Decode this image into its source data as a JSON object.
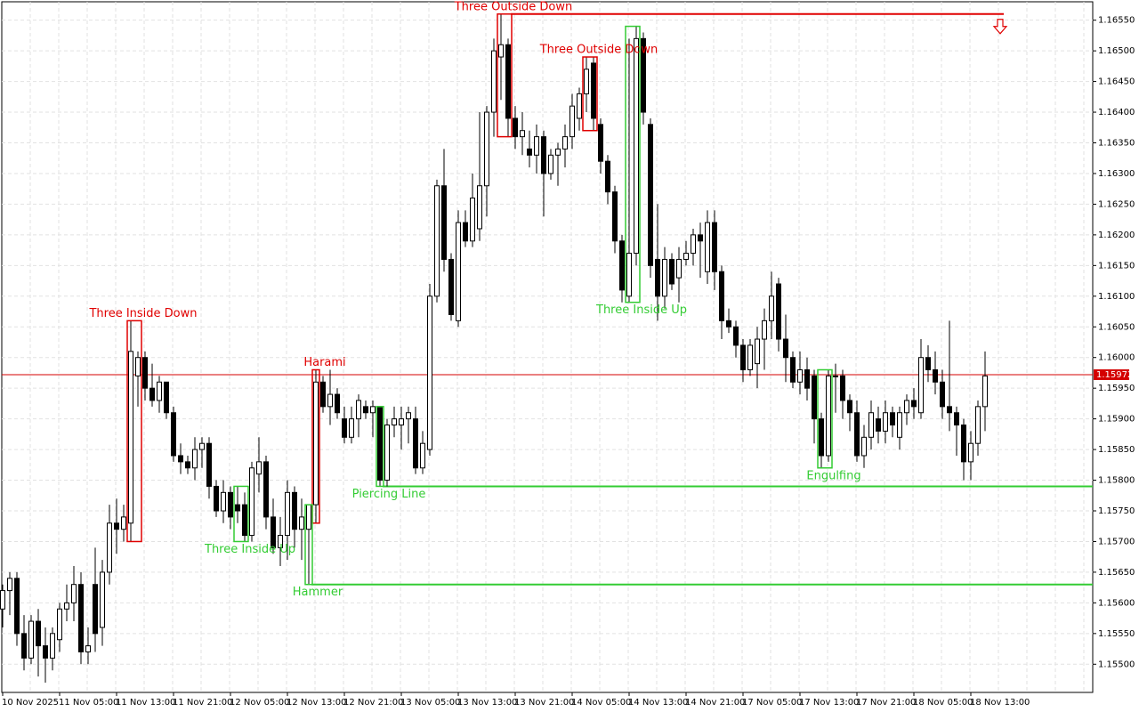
{
  "chart_data": {
    "type": "candlestick",
    "categories": [
      "10 Nov 2025",
      null,
      null,
      null,
      null,
      null,
      null,
      null,
      "11 Nov 05:00",
      null,
      null,
      null,
      null,
      null,
      null,
      null,
      "11 Nov 13:00",
      null,
      null,
      null,
      null,
      null,
      null,
      null,
      "11 Nov 21:00",
      null,
      null,
      null,
      null,
      null,
      null,
      null,
      "12 Nov 05:00",
      null,
      null,
      null,
      null,
      null,
      null,
      null,
      "12 Nov 13:00",
      null,
      null,
      null,
      null,
      null,
      null,
      null,
      "12 Nov 21:00",
      null,
      null,
      null,
      null,
      null,
      null,
      null,
      "13 Nov 05:00",
      null,
      null,
      null,
      null,
      null,
      null,
      null,
      "13 Nov 13:00",
      null,
      null,
      null,
      null,
      null,
      null,
      null,
      "13 Nov 21:00",
      null,
      null,
      null,
      null,
      null,
      null,
      null,
      "14 Nov 05:00",
      null,
      null,
      null,
      null,
      null,
      null,
      null,
      "14 Nov 13:00",
      null,
      null,
      null,
      null,
      null,
      null,
      null,
      "14 Nov 21:00",
      null,
      null,
      null,
      null,
      null,
      null,
      null,
      "17 Nov 05:00",
      null,
      null,
      null,
      null,
      null,
      null,
      null,
      "17 Nov 13:00",
      null,
      null,
      null,
      null,
      null,
      null,
      null,
      "17 Nov 21:00",
      null,
      null,
      null,
      null,
      null,
      null,
      null,
      "18 Nov 05:00",
      null,
      null,
      null,
      null,
      null,
      null,
      null,
      "18 Nov 13:00",
      null,
      null
    ],
    "ohlc": [
      [
        1.1559,
        1.1563,
        1.1556,
        1.1562
      ],
      [
        1.1562,
        1.1565,
        1.1558,
        1.1564
      ],
      [
        1.1564,
        1.1565,
        1.1553,
        1.1555
      ],
      [
        1.1555,
        1.1558,
        1.1549,
        1.1551
      ],
      [
        1.1551,
        1.1558,
        1.155,
        1.1557
      ],
      [
        1.1557,
        1.1559,
        1.1548,
        1.1553
      ],
      [
        1.1553,
        1.1556,
        1.1547,
        1.1551
      ],
      [
        1.1551,
        1.1556,
        1.1549,
        1.1555
      ],
      [
        1.1554,
        1.156,
        1.1552,
        1.1559
      ],
      [
        1.1559,
        1.1563,
        1.1557,
        1.156
      ],
      [
        1.156,
        1.1566,
        1.1557,
        1.1563
      ],
      [
        1.1563,
        1.1565,
        1.155,
        1.1552
      ],
      [
        1.1552,
        1.1556,
        1.155,
        1.1553
      ],
      [
        1.1563,
        1.1569,
        1.1552,
        1.1555
      ],
      [
        1.1556,
        1.1567,
        1.1553,
        1.1565
      ],
      [
        1.1565,
        1.1576,
        1.1563,
        1.1573
      ],
      [
        1.1573,
        1.1577,
        1.1568,
        1.1572
      ],
      [
        1.1572,
        1.1576,
        1.157,
        1.1574
      ],
      [
        1.1573,
        1.1606,
        1.157,
        1.1601
      ],
      [
        1.1597,
        1.1601,
        1.1592,
        1.16
      ],
      [
        1.16,
        1.1601,
        1.1593,
        1.1595
      ],
      [
        1.1595,
        1.1599,
        1.1592,
        1.1593
      ],
      [
        1.1593,
        1.1597,
        1.1591,
        1.1596
      ],
      [
        1.1596,
        1.1596,
        1.159,
        1.1591
      ],
      [
        1.1591,
        1.1592,
        1.1583,
        1.1584
      ],
      [
        1.1584,
        1.1586,
        1.1581,
        1.1583
      ],
      [
        1.1583,
        1.1584,
        1.1581,
        1.1582
      ],
      [
        1.1582,
        1.1587,
        1.158,
        1.1585
      ],
      [
        1.1585,
        1.1587,
        1.1582,
        1.1586
      ],
      [
        1.1586,
        1.1587,
        1.1577,
        1.1579
      ],
      [
        1.1579,
        1.158,
        1.1574,
        1.1575
      ],
      [
        1.1575,
        1.158,
        1.1573,
        1.1578
      ],
      [
        1.1578,
        1.1579,
        1.1572,
        1.1574
      ],
      [
        1.1576,
        1.1579,
        1.1573,
        1.1575
      ],
      [
        1.1576,
        1.1578,
        1.157,
        1.1571
      ],
      [
        1.1571,
        1.1583,
        1.157,
        1.1582
      ],
      [
        1.1581,
        1.1587,
        1.1578,
        1.1583
      ],
      [
        1.1583,
        1.1584,
        1.1572,
        1.1574
      ],
      [
        1.1574,
        1.1577,
        1.1568,
        1.1569
      ],
      [
        1.1569,
        1.1574,
        1.1566,
        1.1571
      ],
      [
        1.1571,
        1.158,
        1.1567,
        1.1578
      ],
      [
        1.1578,
        1.1579,
        1.1569,
        1.1572
      ],
      [
        1.1572,
        1.1577,
        1.1567,
        1.1574
      ],
      [
        1.1572,
        1.1576,
        1.1563,
        1.1576
      ],
      [
        1.1576,
        1.1598,
        1.1573,
        1.1596
      ],
      [
        1.1596,
        1.1597,
        1.1591,
        1.1592
      ],
      [
        1.1592,
        1.1598,
        1.1589,
        1.1594
      ],
      [
        1.1594,
        1.1595,
        1.159,
        1.1591
      ],
      [
        1.159,
        1.1592,
        1.1586,
        1.1587
      ],
      [
        1.1587,
        1.1592,
        1.1586,
        1.159
      ],
      [
        1.159,
        1.1594,
        1.1587,
        1.1593
      ],
      [
        1.1592,
        1.1593,
        1.159,
        1.1591
      ],
      [
        1.1591,
        1.1593,
        1.1587,
        1.1592
      ],
      [
        1.1592,
        1.1592,
        1.1579,
        1.158
      ],
      [
        1.158,
        1.159,
        1.1579,
        1.1589
      ],
      [
        1.1589,
        1.1592,
        1.1587,
        1.159
      ],
      [
        1.1589,
        1.1592,
        1.1585,
        1.159
      ],
      [
        1.159,
        1.1592,
        1.1586,
        1.1591
      ],
      [
        1.159,
        1.1592,
        1.1581,
        1.1582
      ],
      [
        1.1582,
        1.1588,
        1.1581,
        1.1586
      ],
      [
        1.1585,
        1.1612,
        1.1584,
        1.161
      ],
      [
        1.161,
        1.1629,
        1.1609,
        1.1628
      ],
      [
        1.1628,
        1.1634,
        1.1614,
        1.1616
      ],
      [
        1.1616,
        1.1617,
        1.1606,
        1.1607
      ],
      [
        1.1606,
        1.1624,
        1.1605,
        1.1622
      ],
      [
        1.1622,
        1.1624,
        1.1618,
        1.1619
      ],
      [
        1.1619,
        1.163,
        1.1618,
        1.1626
      ],
      [
        1.1621,
        1.164,
        1.1619,
        1.1628
      ],
      [
        1.1628,
        1.1641,
        1.1623,
        1.164
      ],
      [
        1.164,
        1.1652,
        1.1636,
        1.165
      ],
      [
        1.1649,
        1.1656,
        1.1642,
        1.1651
      ],
      [
        1.1651,
        1.1652,
        1.1636,
        1.1639
      ],
      [
        1.1639,
        1.1641,
        1.1634,
        1.1636
      ],
      [
        1.1636,
        1.164,
        1.1633,
        1.1637
      ],
      [
        1.1634,
        1.1637,
        1.1631,
        1.1633
      ],
      [
        1.1633,
        1.1638,
        1.163,
        1.1636
      ],
      [
        1.1636,
        1.1637,
        1.1623,
        1.163
      ],
      [
        1.163,
        1.1634,
        1.1629,
        1.1633
      ],
      [
        1.1633,
        1.1635,
        1.1628,
        1.1634
      ],
      [
        1.1634,
        1.1638,
        1.1631,
        1.1636
      ],
      [
        1.1636,
        1.1643,
        1.1634,
        1.1641
      ],
      [
        1.1639,
        1.1644,
        1.1637,
        1.1643
      ],
      [
        1.1643,
        1.1649,
        1.164,
        1.1647
      ],
      [
        1.1648,
        1.1649,
        1.1637,
        1.1639
      ],
      [
        1.1638,
        1.1639,
        1.163,
        1.1632
      ],
      [
        1.1632,
        1.1633,
        1.1625,
        1.1627
      ],
      [
        1.1627,
        1.1628,
        1.1617,
        1.1619
      ],
      [
        1.1619,
        1.162,
        1.1609,
        1.1611
      ],
      [
        1.161,
        1.1652,
        1.1609,
        1.1617
      ],
      [
        1.1617,
        1.1654,
        1.1615,
        1.1652
      ],
      [
        1.1652,
        1.1653,
        1.1638,
        1.164
      ],
      [
        1.1638,
        1.1639,
        1.1613,
        1.1615
      ],
      [
        1.1616,
        1.1625,
        1.1606,
        1.161
      ],
      [
        1.161,
        1.1618,
        1.1608,
        1.1616
      ],
      [
        1.1616,
        1.1617,
        1.1611,
        1.1612
      ],
      [
        1.1613,
        1.1618,
        1.1609,
        1.1616
      ],
      [
        1.1616,
        1.1619,
        1.1615,
        1.1617
      ],
      [
        1.1617,
        1.1621,
        1.1615,
        1.162
      ],
      [
        1.162,
        1.1622,
        1.1613,
        1.1619
      ],
      [
        1.1614,
        1.1624,
        1.1612,
        1.1622
      ],
      [
        1.1622,
        1.1624,
        1.1611,
        1.1614
      ],
      [
        1.1614,
        1.1615,
        1.1603,
        1.1606
      ],
      [
        1.1606,
        1.1608,
        1.1604,
        1.1605
      ],
      [
        1.1605,
        1.1606,
        1.16,
        1.1602
      ],
      [
        1.1602,
        1.1603,
        1.1596,
        1.1598
      ],
      [
        1.1598,
        1.1603,
        1.1597,
        1.1602
      ],
      [
        1.1599,
        1.1605,
        1.1595,
        1.1603
      ],
      [
        1.1603,
        1.1608,
        1.1598,
        1.1606
      ],
      [
        1.1606,
        1.1614,
        1.1603,
        1.161
      ],
      [
        1.1612,
        1.1613,
        1.1601,
        1.1603
      ],
      [
        1.1603,
        1.1607,
        1.1596,
        1.16
      ],
      [
        1.16,
        1.1601,
        1.1595,
        1.1596
      ],
      [
        1.1596,
        1.1601,
        1.1594,
        1.1598
      ],
      [
        1.1598,
        1.16,
        1.1593,
        1.1595
      ],
      [
        1.1597,
        1.1598,
        1.1586,
        1.159
      ],
      [
        1.159,
        1.1591,
        1.1582,
        1.1584
      ],
      [
        1.1584,
        1.1598,
        1.1583,
        1.1597
      ],
      [
        1.1597,
        1.1599,
        1.1591,
        1.1597
      ],
      [
        1.1597,
        1.1598,
        1.159,
        1.1593
      ],
      [
        1.1593,
        1.1594,
        1.1588,
        1.1591
      ],
      [
        1.1591,
        1.1593,
        1.1583,
        1.1584
      ],
      [
        1.1584,
        1.1589,
        1.1582,
        1.1587
      ],
      [
        1.1587,
        1.1593,
        1.1585,
        1.1591
      ],
      [
        1.159,
        1.1592,
        1.1586,
        1.1588
      ],
      [
        1.1588,
        1.1593,
        1.1586,
        1.1591
      ],
      [
        1.1591,
        1.1592,
        1.1587,
        1.1589
      ],
      [
        1.1587,
        1.1592,
        1.1585,
        1.1591
      ],
      [
        1.1591,
        1.1594,
        1.1589,
        1.1593
      ],
      [
        1.1593,
        1.1595,
        1.159,
        1.1592
      ],
      [
        1.1591,
        1.1603,
        1.159,
        1.16
      ],
      [
        1.16,
        1.1602,
        1.1596,
        1.1598
      ],
      [
        1.1598,
        1.1601,
        1.1594,
        1.1596
      ],
      [
        1.1596,
        1.1598,
        1.159,
        1.1592
      ],
      [
        1.1592,
        1.1606,
        1.1588,
        1.1591
      ],
      [
        1.1591,
        1.1592,
        1.1584,
        1.1589
      ],
      [
        1.1589,
        1.159,
        1.158,
        1.1583
      ],
      [
        1.1583,
        1.1588,
        1.158,
        1.1586
      ],
      [
        1.1586,
        1.1593,
        1.1584,
        1.1592
      ],
      [
        1.1592,
        1.1601,
        1.1588,
        1.1597
      ]
    ],
    "up_color": "#ffffff",
    "down_color": "#000000",
    "ylim": [
      1.15454,
      1.1658
    ],
    "yticks": [
      {
        "value": 1.155,
        "label": "1.15500"
      },
      {
        "value": 1.1555,
        "label": "1.15550"
      },
      {
        "value": 1.156,
        "label": "1.15600"
      },
      {
        "value": 1.1565,
        "label": "1.15650"
      },
      {
        "value": 1.157,
        "label": "1.15700"
      },
      {
        "value": 1.1575,
        "label": "1.15750"
      },
      {
        "value": 1.158,
        "label": "1.15800"
      },
      {
        "value": 1.1585,
        "label": "1.15850"
      },
      {
        "value": 1.159,
        "label": "1.15900"
      },
      {
        "value": 1.1595,
        "label": "1.15950"
      },
      {
        "value": 1.16,
        "label": "1.16000"
      },
      {
        "value": 1.1605,
        "label": "1.16050"
      },
      {
        "value": 1.161,
        "label": "1.16100"
      },
      {
        "value": 1.1615,
        "label": "1.16150"
      },
      {
        "value": 1.162,
        "label": "1.16200"
      },
      {
        "value": 1.1625,
        "label": "1.16250"
      },
      {
        "value": 1.163,
        "label": "1.16300"
      },
      {
        "value": 1.1635,
        "label": "1.16350"
      },
      {
        "value": 1.164,
        "label": "1.16400"
      },
      {
        "value": 1.1645,
        "label": "1.16450"
      },
      {
        "value": 1.165,
        "label": "1.16500"
      },
      {
        "value": 1.1655,
        "label": "1.16550"
      }
    ],
    "grid": true,
    "current_price": {
      "value": 1.15972,
      "label": "1.15972",
      "color": "#d40000"
    },
    "patterns": [
      {
        "label": "Three Inside Down",
        "color": "#e00000",
        "first": 18,
        "last": 19,
        "text_pos": "above"
      },
      {
        "label": "Three Inside Up",
        "color": "#33cc33",
        "first": 33,
        "last": 34,
        "text_pos": "below"
      },
      {
        "label": "Harami",
        "color": "#e00000",
        "first": 44,
        "last": 44,
        "text_pos": "above"
      },
      {
        "label": "Hammer",
        "color": "#33cc33",
        "first": 43,
        "last": 43,
        "text_pos": "below"
      },
      {
        "label": "Piercing Line",
        "color": "#33cc33",
        "first": 53,
        "last": 53,
        "text_pos": "below"
      },
      {
        "label": "Three Outside Down",
        "color": "#e00000",
        "first": 70,
        "last": 71,
        "text_pos": "above"
      },
      {
        "label": "Three Outside Down",
        "color": "#e00000",
        "first": 82,
        "last": 83,
        "text_pos": "above"
      },
      {
        "label": "Three Inside Up",
        "color": "#33cc33",
        "first": 88,
        "last": 89,
        "text_pos": "below"
      },
      {
        "label": "Engulfing",
        "color": "#33cc33",
        "first": 115,
        "last": 116,
        "text_pos": "below"
      }
    ],
    "levels": [
      {
        "value": 1.1656,
        "color": "#e00000",
        "from": 71,
        "arrow": "down"
      },
      {
        "value": 1.1579,
        "color": "#33cc33",
        "from": 53
      },
      {
        "value": 1.1563,
        "color": "#33cc33",
        "from": 43
      }
    ]
  }
}
